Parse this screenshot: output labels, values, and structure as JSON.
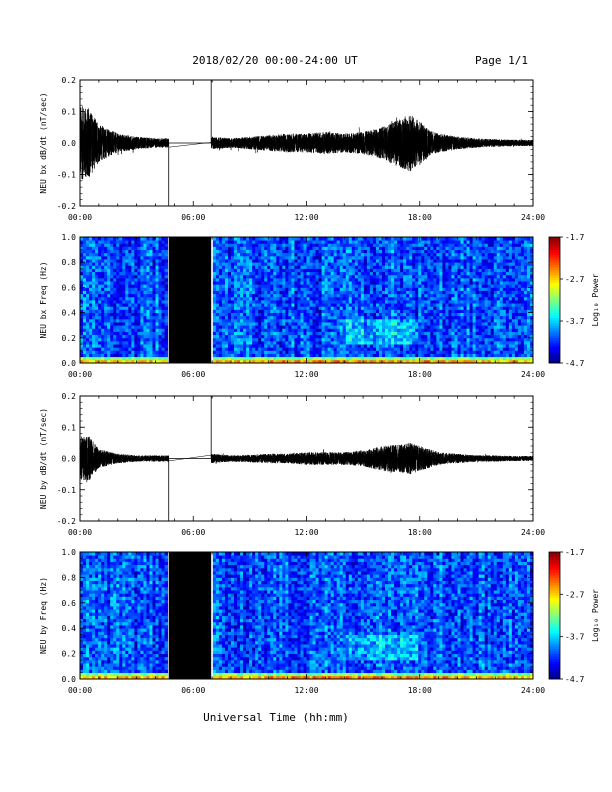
{
  "header": {
    "title": "2018/02/20  00:00-24:00 UT",
    "page": "Page 1/1"
  },
  "chart_data": [
    {
      "type": "line",
      "ylabel": "NEU bx dB/dt (nT/sec)",
      "xlim": [
        0,
        24
      ],
      "ylim": [
        -0.2,
        0.2
      ],
      "x_ticklabels": [
        "00:00",
        "06:00",
        "12:00",
        "18:00",
        "24:00"
      ],
      "y_ticks": [
        -0.2,
        -0.1,
        0.0,
        0.1,
        0.2
      ],
      "y_ticklabels": [
        "-0.2",
        "-0.1",
        "0.0",
        "0.1",
        "0.2"
      ],
      "data_gap_hours": [
        4.7,
        6.95
      ],
      "envelope": {
        "hours": [
          0,
          0.5,
          1,
          2,
          3,
          4,
          4.7,
          6.95,
          8,
          9,
          10,
          11,
          12,
          13,
          14,
          15,
          16,
          17,
          17.5,
          18,
          18.5,
          19,
          20,
          21,
          22,
          23,
          24
        ],
        "amplitude": [
          0.12,
          0.11,
          0.06,
          0.03,
          0.02,
          0.015,
          0.015,
          0.02,
          0.015,
          0.02,
          0.025,
          0.03,
          0.03,
          0.035,
          0.03,
          0.035,
          0.05,
          0.08,
          0.09,
          0.07,
          0.04,
          0.03,
          0.02,
          0.015,
          0.012,
          0.01,
          0.01
        ]
      }
    },
    {
      "type": "heatmap",
      "ylabel": "NEU bx Freq (Hz)",
      "xlim": [
        0,
        24
      ],
      "ylim": [
        0,
        1.0
      ],
      "x_ticklabels": [
        "00:00",
        "06:00",
        "12:00",
        "18:00",
        "24:00"
      ],
      "y_ticks": [
        0.0,
        0.2,
        0.4,
        0.6,
        0.8,
        1.0
      ],
      "y_ticklabels": [
        "0.0",
        "0.2",
        "0.4",
        "0.6",
        "0.8",
        "1.0"
      ],
      "data_gap_hours": [
        4.7,
        6.95
      ],
      "colorbar": {
        "label": "Log₁₀ Power",
        "range": [
          -4.7,
          -1.7
        ],
        "ticks": [
          -1.7,
          -2.7,
          -3.7,
          -4.7
        ],
        "ticklabels": [
          "-1.7",
          "-2.7",
          "-3.7",
          "-4.7"
        ]
      }
    },
    {
      "type": "line",
      "ylabel": "NEU by dB/dt (nT/sec)",
      "xlim": [
        0,
        24
      ],
      "ylim": [
        -0.2,
        0.2
      ],
      "x_ticklabels": [
        "00:00",
        "06:00",
        "12:00",
        "18:00",
        "24:00"
      ],
      "y_ticks": [
        -0.2,
        -0.1,
        0.0,
        0.1,
        0.2
      ],
      "y_ticklabels": [
        "-0.2",
        "-0.1",
        "0.0",
        "0.1",
        "0.2"
      ],
      "data_gap_hours": [
        4.7,
        6.95
      ],
      "envelope": {
        "hours": [
          0,
          0.5,
          1,
          2,
          3,
          4,
          4.7,
          6.95,
          8,
          9,
          10,
          11,
          12,
          13,
          14,
          15,
          16,
          17,
          17.5,
          18,
          18.5,
          19,
          20,
          21,
          22,
          23,
          24
        ],
        "amplitude": [
          0.07,
          0.07,
          0.03,
          0.015,
          0.01,
          0.01,
          0.01,
          0.015,
          0.01,
          0.012,
          0.015,
          0.015,
          0.02,
          0.02,
          0.02,
          0.025,
          0.04,
          0.045,
          0.05,
          0.04,
          0.03,
          0.02,
          0.015,
          0.01,
          0.01,
          0.008,
          0.008
        ]
      }
    },
    {
      "type": "heatmap",
      "ylabel": "NEU by Freq (Hz)",
      "xlim": [
        0,
        24
      ],
      "ylim": [
        0,
        1.0
      ],
      "x_ticklabels": [
        "00:00",
        "06:00",
        "12:00",
        "18:00",
        "24:00"
      ],
      "y_ticks": [
        0.0,
        0.2,
        0.4,
        0.6,
        0.8,
        1.0
      ],
      "y_ticklabels": [
        "0.0",
        "0.2",
        "0.4",
        "0.6",
        "0.8",
        "1.0"
      ],
      "data_gap_hours": [
        4.7,
        6.95
      ],
      "colorbar": {
        "label": "Log₁₀ Power",
        "range": [
          -4.7,
          -1.7
        ],
        "ticks": [
          -1.7,
          -2.7,
          -3.7,
          -4.7
        ],
        "ticklabels": [
          "-1.7",
          "-2.7",
          "-3.7",
          "-4.7"
        ]
      }
    }
  ],
  "xlabel": "Universal Time (hh:mm)"
}
